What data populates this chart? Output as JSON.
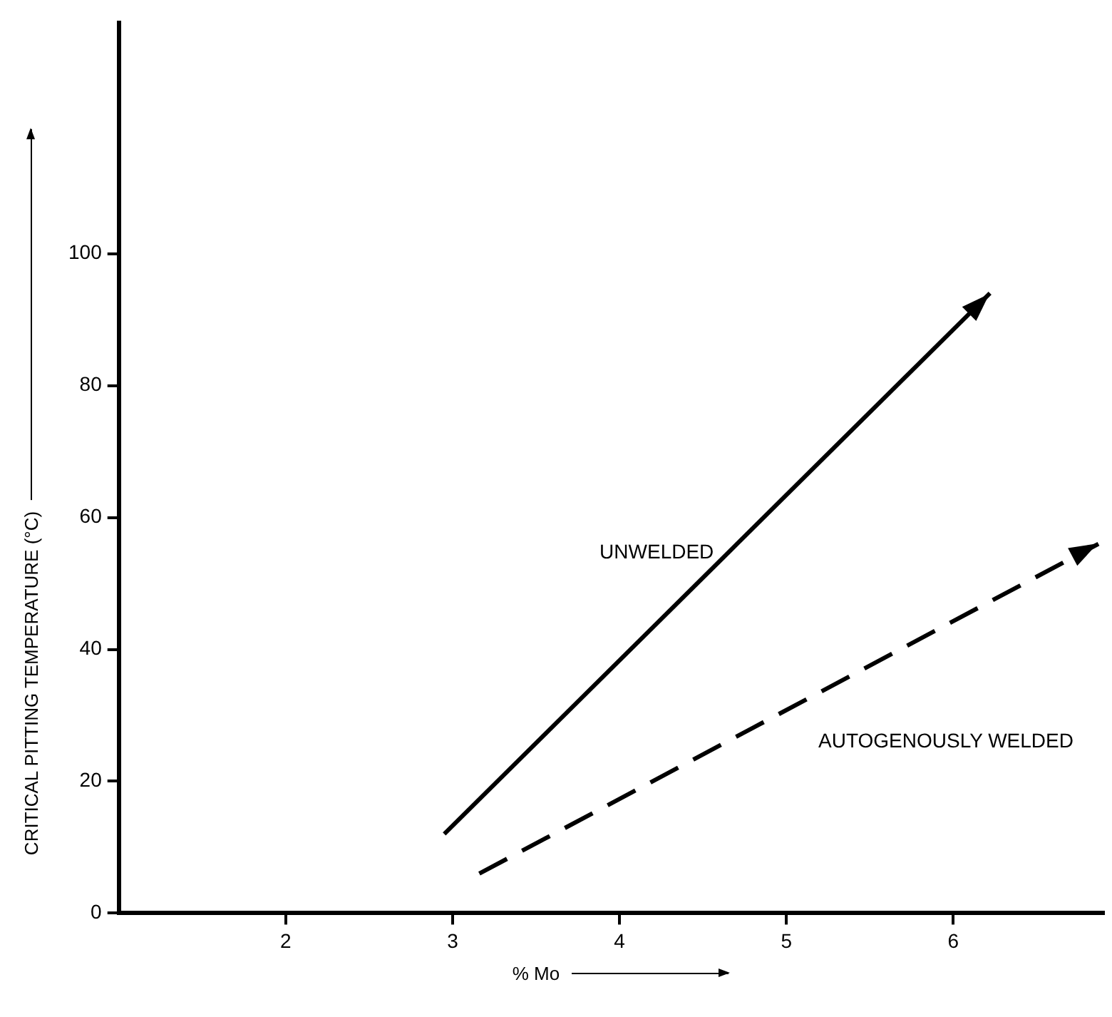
{
  "chart_data": {
    "type": "line",
    "xlabel": "% Mo",
    "ylabel": "CRITICAL PITTING TEMPERATURE (°C)",
    "xlim": [
      1,
      6.9
    ],
    "xticks": [
      2,
      3,
      4,
      5,
      6
    ],
    "ylim": [
      0,
      135
    ],
    "yticks": [
      0,
      20,
      40,
      60,
      80,
      100
    ],
    "grid": false,
    "legend": false,
    "marker": "none",
    "series": [
      {
        "name": "UNWELDED",
        "color": "#000000",
        "line_style": "solid",
        "x": [
          2.95,
          6.22
        ],
        "values": [
          12,
          94
        ]
      },
      {
        "name": "AUTOGENOUSLY WELDED",
        "color": "#000000",
        "line_style": "dashed",
        "x": [
          3.16,
          6.87
        ],
        "values": [
          6,
          56
        ]
      }
    ]
  }
}
